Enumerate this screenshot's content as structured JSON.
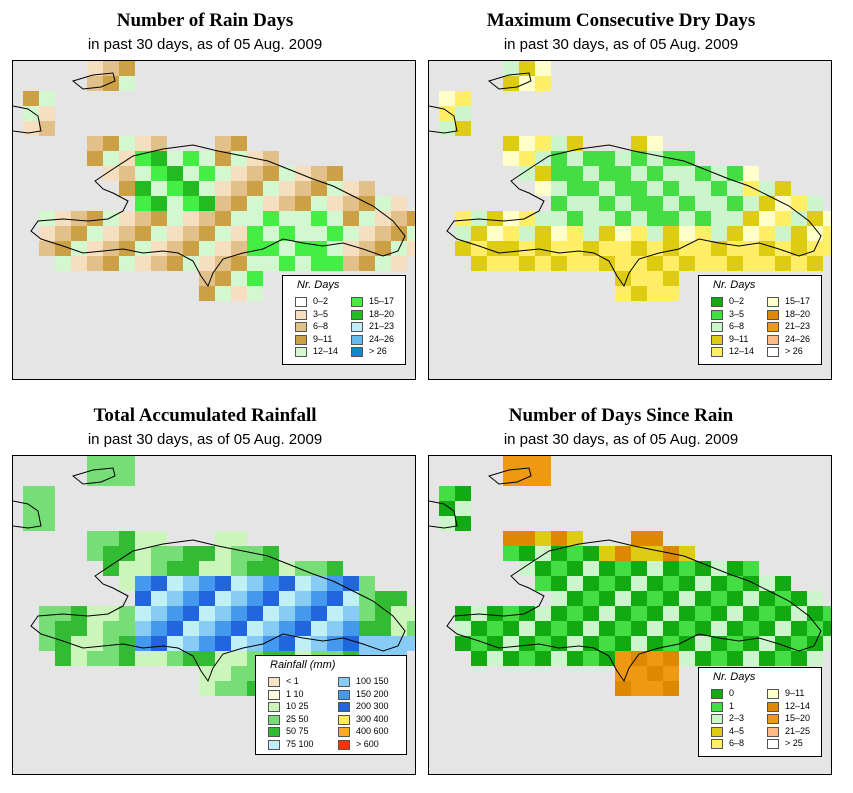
{
  "panels": [
    {
      "title": "Number of Rain Days",
      "subtitle": "in past 30 days, as of  05 Aug. 2009",
      "legend": {
        "title": "Nr. Days",
        "items": [
          {
            "label": "0–2",
            "color": "#ffffff"
          },
          {
            "label": "3–5",
            "color": "#f5dfc0"
          },
          {
            "label": "6–8",
            "color": "#e2c08a"
          },
          {
            "label": "9–11",
            "color": "#cca044"
          },
          {
            "label": "12–14",
            "color": "#d3f7cf"
          },
          {
            "label": "15–17",
            "color": "#44ee44"
          },
          {
            "label": "18–20",
            "color": "#22bb22"
          },
          {
            "label": "21–23",
            "color": "#bfecf7"
          },
          {
            "label": "24–26",
            "color": "#66bbee"
          },
          {
            "label": "> 26",
            "color": "#1188cc"
          }
        ]
      }
    },
    {
      "title": "Maximum Consecutive Dry Days",
      "subtitle": "in past 30 days, as of  05 Aug. 2009",
      "legend": {
        "title": "Nr. Days",
        "items": [
          {
            "label": "0–2",
            "color": "#11aa11"
          },
          {
            "label": "3–5",
            "color": "#44dd44"
          },
          {
            "label": "6–8",
            "color": "#ccf5cc"
          },
          {
            "label": "9–11",
            "color": "#ddcc11"
          },
          {
            "label": "12–14",
            "color": "#ffee66"
          },
          {
            "label": "15–17",
            "color": "#ffffcc"
          },
          {
            "label": "18–20",
            "color": "#dd8800"
          },
          {
            "label": "21–23",
            "color": "#ee9911"
          },
          {
            "label": "24–26",
            "color": "#ffbb88"
          },
          {
            "label": "> 26",
            "color": "#ffffff"
          }
        ]
      }
    },
    {
      "title": "Total Accumulated Rainfall",
      "subtitle": "in past 30 days, as of  05 Aug. 2009",
      "legend": {
        "title": "Rainfall (mm)",
        "items": [
          {
            "label": "< 1",
            "color": "#f5e4c4"
          },
          {
            "label": "1    10",
            "color": "#fffde0"
          },
          {
            "label": "10    25",
            "color": "#ccf5bb"
          },
          {
            "label": "25    50",
            "color": "#77dd77"
          },
          {
            "label": "50    75",
            "color": "#33bb33"
          },
          {
            "label": "75   100",
            "color": "#bfeff7"
          },
          {
            "label": "100   150",
            "color": "#88ccf5"
          },
          {
            "label": "150   200",
            "color": "#4499ee"
          },
          {
            "label": "200   300",
            "color": "#2266dd"
          },
          {
            "label": "300   400",
            "color": "#ffee55"
          },
          {
            "label": "400   600",
            "color": "#ffaa22"
          },
          {
            "label": "> 600",
            "color": "#ff3300"
          }
        ]
      }
    },
    {
      "title": "Number of Days Since Rain",
      "subtitle": "in past 30 days, as of  05 Aug. 2009",
      "legend": {
        "title": "Nr. Days",
        "items": [
          {
            "label": "0",
            "color": "#11aa11"
          },
          {
            "label": "1",
            "color": "#44dd44"
          },
          {
            "label": "2–3",
            "color": "#ccf5cc"
          },
          {
            "label": "4–5",
            "color": "#ddcc11"
          },
          {
            "label": "6–8",
            "color": "#ffee66"
          },
          {
            "label": "9–11",
            "color": "#ffffcc"
          },
          {
            "label": "12–14",
            "color": "#dd8800"
          },
          {
            "label": "15–20",
            "color": "#ee9911"
          },
          {
            "label": "21–25",
            "color": "#ffbb88"
          },
          {
            "label": "> 25",
            "color": "#ffffff"
          }
        ]
      }
    }
  ]
}
